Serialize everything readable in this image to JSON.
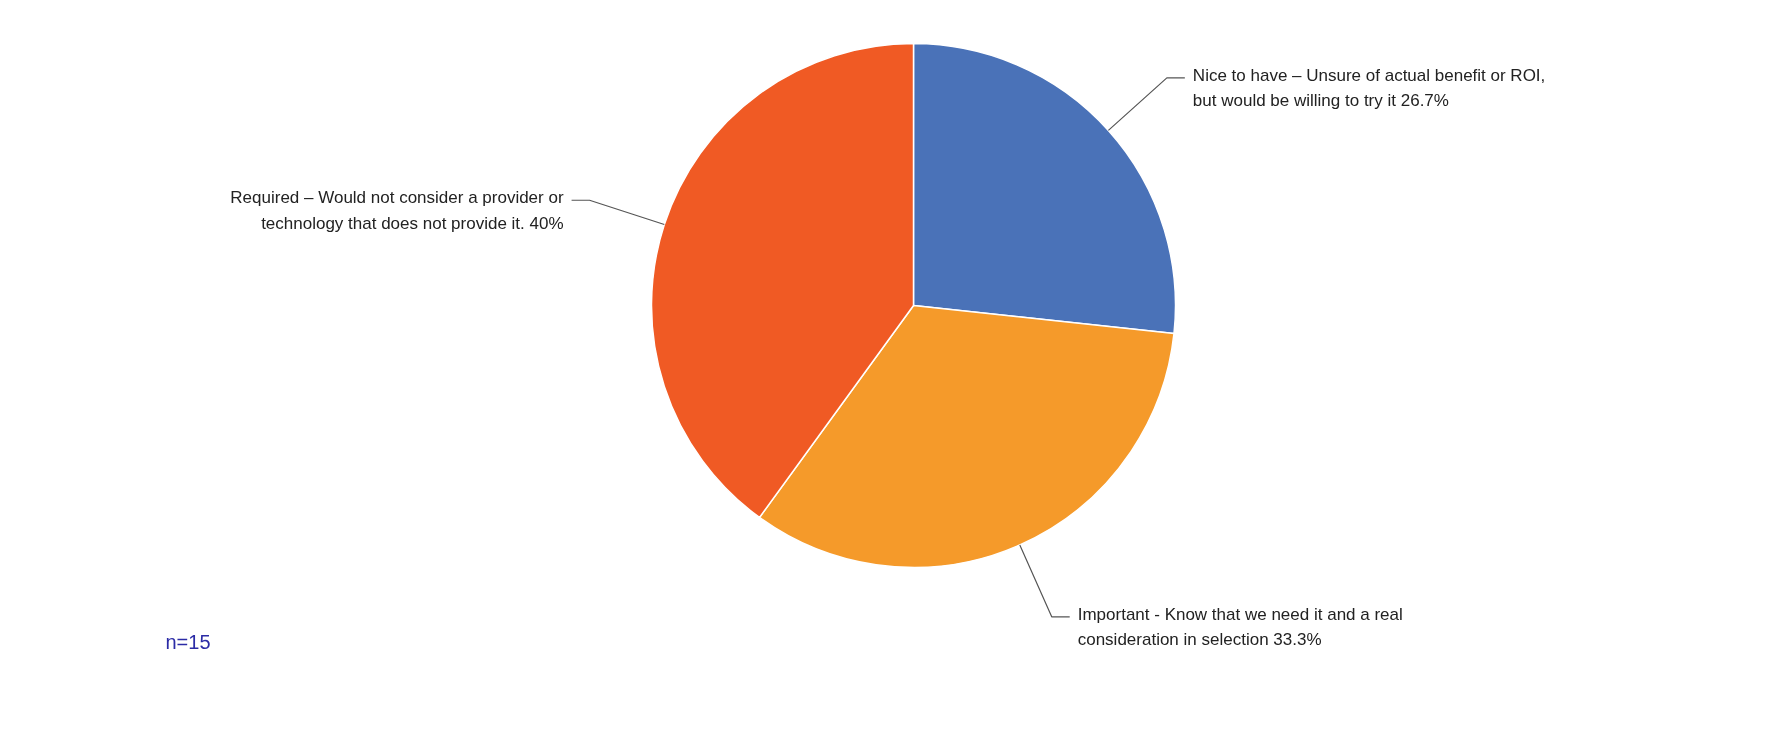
{
  "chart_data": {
    "type": "pie",
    "categories": [
      "Nice to have – Unsure of actual benefit or ROI, but would be willing to try it 26.7%",
      "Important - Know that we need it and a real consideration in selection 33.3%",
      "Required – Would not consider a provider or technology that does not provide it. 40%"
    ],
    "values": [
      26.7,
      33.3,
      40
    ],
    "colors": [
      "#4a72b8",
      "#f59a2a",
      "#f05a24"
    ],
    "annotations": [
      "n=15"
    ],
    "legend": false
  }
}
